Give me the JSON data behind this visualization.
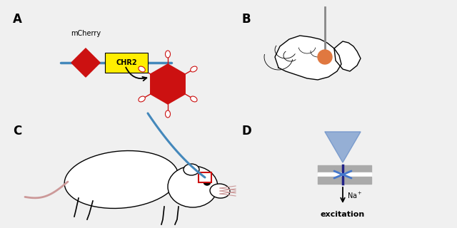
{
  "bg_color": "#f0f0f0",
  "red": "#cc1111",
  "blue": "#4488bb",
  "yellow": "#ffee00",
  "orange": "#e07840",
  "gray_mem": "#aaaaaa",
  "blue_tri": "#7799cc",
  "blue_chan": "#4477cc",
  "pink_tail": "#cc9999",
  "panel_A_label": "A",
  "panel_B_label": "B",
  "panel_C_label": "C",
  "panel_D_label": "D",
  "mcherry_text": "mCherry",
  "chr2_text": "CHR2",
  "na_text": "Na",
  "excitation_text": "excitation"
}
